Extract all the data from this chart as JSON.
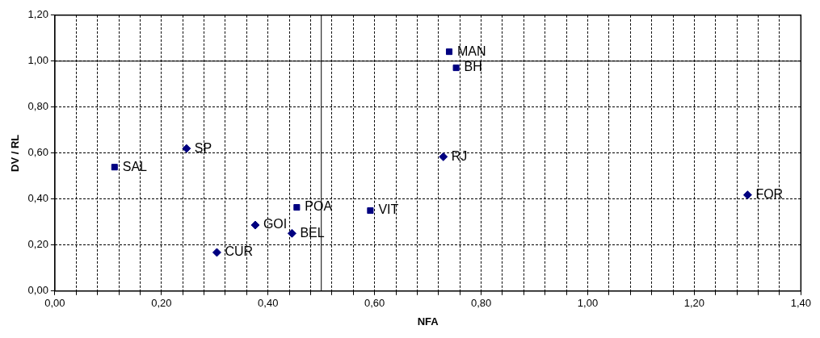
{
  "chart_data": {
    "type": "scatter",
    "xlabel": "NFA",
    "ylabel": "DV / RL",
    "series": [
      {
        "color": "#000080",
        "marker": "diamond",
        "x": [
          0.247,
          0.729,
          1.3,
          0.376,
          0.445,
          0.304
        ],
        "values": [
          0.62,
          0.584,
          0.418,
          0.287,
          0.251,
          0.168
        ]
      },
      {
        "color": "#000080",
        "marker": "square",
        "x": [
          0.74,
          0.753,
          0.112,
          0.454,
          0.592
        ],
        "values": [
          1.041,
          0.971,
          0.539,
          0.364,
          0.35
        ]
      }
    ],
    "annotations": [
      {
        "text": "SP",
        "x": 0.247,
        "y": 0.62
      },
      {
        "text": "RJ",
        "x": 0.729,
        "y": 0.584
      },
      {
        "text": "FOR",
        "x": 1.3,
        "y": 0.418
      },
      {
        "text": "GOI",
        "x": 0.376,
        "y": 0.287
      },
      {
        "text": "BEL",
        "x": 0.445,
        "y": 0.251
      },
      {
        "text": "CUR",
        "x": 0.304,
        "y": 0.168
      },
      {
        "text": "MAN",
        "x": 0.74,
        "y": 1.041
      },
      {
        "text": "BH",
        "x": 0.753,
        "y": 0.971
      },
      {
        "text": "SAL",
        "x": 0.112,
        "y": 0.539
      },
      {
        "text": "POA",
        "x": 0.454,
        "y": 0.364
      },
      {
        "text": "VIT",
        "x": 0.592,
        "y": 0.35
      }
    ],
    "ref_lines": [
      {
        "axis": "x",
        "value": 0.5,
        "color": "#000000"
      },
      {
        "axis": "y",
        "value": 1.0,
        "color": "#000000"
      }
    ],
    "xlim": [
      0,
      1.4
    ],
    "xticks": [
      {
        "value": 0,
        "label": "0,00"
      },
      {
        "value": 0.04,
        "label": null
      },
      {
        "value": 0.08,
        "label": null
      },
      {
        "value": 0.12,
        "label": null
      },
      {
        "value": 0.16,
        "label": null
      },
      {
        "value": 0.2,
        "label": "0,20"
      },
      {
        "value": 0.24,
        "label": null
      },
      {
        "value": 0.28,
        "label": null
      },
      {
        "value": 0.32,
        "label": null
      },
      {
        "value": 0.36,
        "label": null
      },
      {
        "value": 0.4,
        "label": "0,40"
      },
      {
        "value": 0.44,
        "label": null
      },
      {
        "value": 0.48,
        "label": null
      },
      {
        "value": 0.52,
        "label": null
      },
      {
        "value": 0.56,
        "label": null
      },
      {
        "value": 0.6,
        "label": "0,60"
      },
      {
        "value": 0.64,
        "label": null
      },
      {
        "value": 0.68,
        "label": null
      },
      {
        "value": 0.72,
        "label": null
      },
      {
        "value": 0.76,
        "label": null
      },
      {
        "value": 0.8,
        "label": "0,80"
      },
      {
        "value": 0.84,
        "label": null
      },
      {
        "value": 0.88,
        "label": null
      },
      {
        "value": 0.92,
        "label": null
      },
      {
        "value": 0.96,
        "label": null
      },
      {
        "value": 1.0,
        "label": "1,00"
      },
      {
        "value": 1.04,
        "label": null
      },
      {
        "value": 1.08,
        "label": null
      },
      {
        "value": 1.12,
        "label": null
      },
      {
        "value": 1.16,
        "label": null
      },
      {
        "value": 1.2,
        "label": "1,20"
      },
      {
        "value": 1.24,
        "label": null
      },
      {
        "value": 1.28,
        "label": null
      },
      {
        "value": 1.32,
        "label": null
      },
      {
        "value": 1.36,
        "label": null
      },
      {
        "value": 1.4,
        "label": "1,40"
      }
    ],
    "ylim": [
      0,
      1.2
    ],
    "yticks": [
      {
        "value": 0,
        "label": "0,00"
      },
      {
        "value": 0.2,
        "label": "0,20"
      },
      {
        "value": 0.4,
        "label": "0,40"
      },
      {
        "value": 0.6,
        "label": "0,60"
      },
      {
        "value": 0.8,
        "label": "0,80"
      },
      {
        "value": 1.0,
        "label": "1,00"
      },
      {
        "value": 1.2,
        "label": "1,20"
      }
    ],
    "grid": true,
    "legend": false
  }
}
